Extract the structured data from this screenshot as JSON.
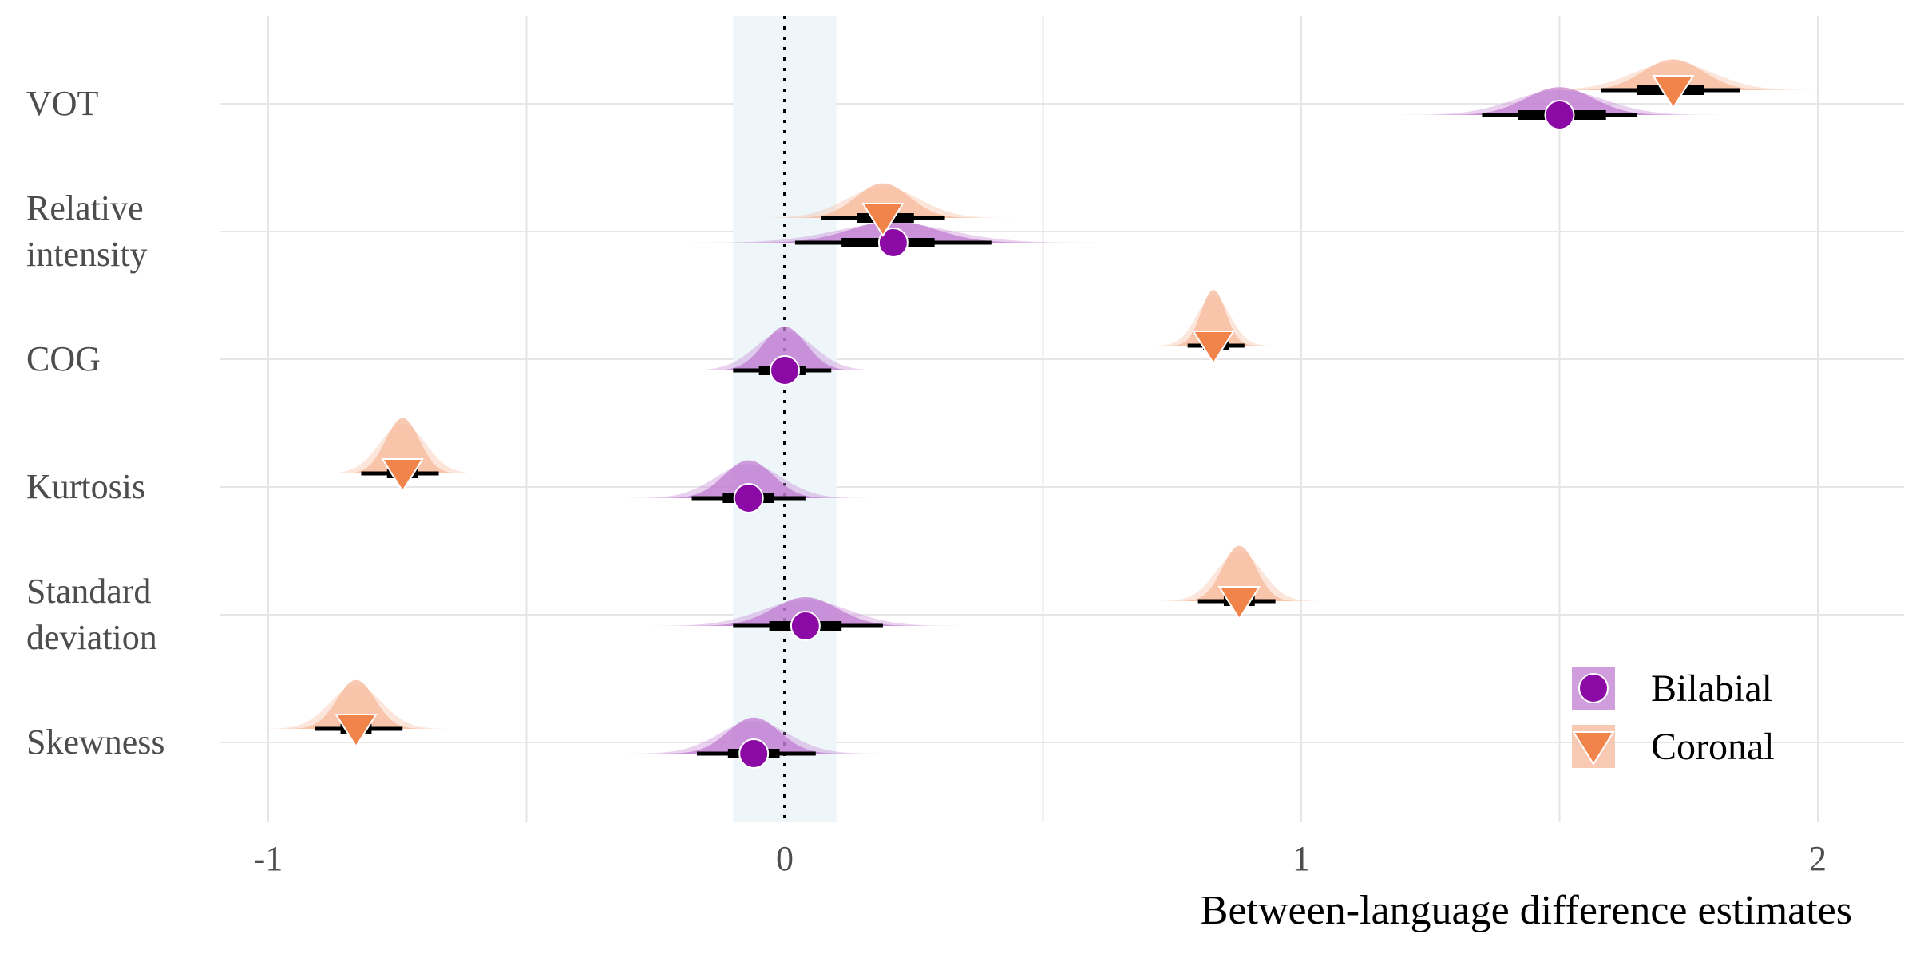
{
  "chart_data": {
    "type": "scatter",
    "title": "",
    "xlabel": "Between-language difference estimates",
    "ylabel": "",
    "xlim": [
      -1.1,
      2.2
    ],
    "x_ticks": [
      "-1",
      "0",
      "1",
      "2"
    ],
    "x_tick_values": [
      -1,
      0,
      1,
      2
    ],
    "reference_line": 0,
    "rope": [
      -0.1,
      0.1
    ],
    "grid": true,
    "legend_placement": "bottom-right",
    "categories": [
      "VOT",
      "Relative intensity",
      "COG",
      "Kurtosis",
      "Standard deviation",
      "Skewness"
    ],
    "category_lines": [
      [
        "VOT"
      ],
      [
        "Relative",
        "intensity"
      ],
      [
        "COG"
      ],
      [
        "Kurtosis"
      ],
      [
        "Standard",
        "deviation"
      ],
      [
        "Skewness"
      ]
    ],
    "series": [
      {
        "name": "Bilabial",
        "shape": "circle",
        "color": "#8b0aa5",
        "density_color": "#c07cd2",
        "points": [
          {
            "category": "VOT",
            "estimate": 1.5,
            "ci66": [
              1.42,
              1.59
            ],
            "ci95": [
              1.35,
              1.65
            ]
          },
          {
            "category": "Relative intensity",
            "estimate": 0.21,
            "ci66": [
              0.11,
              0.29
            ],
            "ci95": [
              0.02,
              0.4
            ]
          },
          {
            "category": "COG",
            "estimate": 0.0,
            "ci66": [
              -0.05,
              0.04
            ],
            "ci95": [
              -0.1,
              0.09
            ]
          },
          {
            "category": "Kurtosis",
            "estimate": -0.07,
            "ci66": [
              -0.12,
              -0.02
            ],
            "ci95": [
              -0.18,
              0.04
            ]
          },
          {
            "category": "Standard deviation",
            "estimate": 0.04,
            "ci66": [
              -0.03,
              0.11
            ],
            "ci95": [
              -0.1,
              0.19
            ]
          },
          {
            "category": "Skewness",
            "estimate": -0.06,
            "ci66": [
              -0.11,
              -0.01
            ],
            "ci95": [
              -0.17,
              0.06
            ]
          }
        ]
      },
      {
        "name": "Coronal",
        "shape": "triangle-down",
        "color": "#f1844b",
        "density_color": "#f7b899",
        "points": [
          {
            "category": "VOT",
            "estimate": 1.72,
            "ci66": [
              1.65,
              1.78
            ],
            "ci95": [
              1.58,
              1.85
            ]
          },
          {
            "category": "Relative intensity",
            "estimate": 0.19,
            "ci66": [
              0.14,
              0.25
            ],
            "ci95": [
              0.07,
              0.31
            ]
          },
          {
            "category": "COG",
            "estimate": 0.83,
            "ci66": [
              0.81,
              0.86
            ],
            "ci95": [
              0.78,
              0.89
            ]
          },
          {
            "category": "Kurtosis",
            "estimate": -0.74,
            "ci66": [
              -0.77,
              -0.71
            ],
            "ci95": [
              -0.82,
              -0.67
            ]
          },
          {
            "category": "Standard deviation",
            "estimate": 0.88,
            "ci66": [
              0.85,
              0.91
            ],
            "ci95": [
              0.8,
              0.95
            ]
          },
          {
            "category": "Skewness",
            "estimate": -0.83,
            "ci66": [
              -0.86,
              -0.8
            ],
            "ci95": [
              -0.91,
              -0.74
            ]
          }
        ]
      }
    ]
  }
}
